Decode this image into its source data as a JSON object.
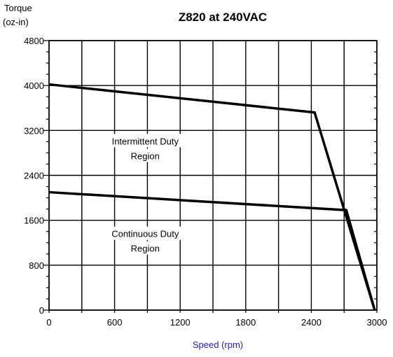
{
  "chart_data": {
    "type": "line",
    "title": "Z820 at 240VAC",
    "ylabel_lines": [
      "Torque",
      "(oz-in)"
    ],
    "xlabel": "Speed (rpm)",
    "xlim": [
      0,
      3000
    ],
    "ylim": [
      0,
      4800
    ],
    "x_ticks": [
      0,
      600,
      1200,
      1800,
      2400,
      3000
    ],
    "y_ticks": [
      0,
      800,
      1600,
      2400,
      3200,
      4000,
      4800
    ],
    "x_tick_labels": [
      "0",
      "600",
      "1200",
      "1800",
      "2400",
      "3000"
    ],
    "y_tick_labels": [
      "0",
      "800",
      "1600",
      "2400",
      "3200",
      "4000",
      "4800"
    ],
    "x_gridlines": [
      0,
      300,
      600,
      900,
      1200,
      1500,
      1800,
      2100,
      2400,
      2700,
      3000
    ],
    "grid": true,
    "xlabel_color": "#1a1acc",
    "series": [
      {
        "x": [
          0,
          2430,
          2980
        ],
        "y": [
          4020,
          3520,
          0
        ]
      },
      {
        "x": [
          0,
          2720,
          2980
        ],
        "y": [
          2100,
          1780,
          0
        ]
      }
    ],
    "annotations": [
      {
        "lines": [
          "Intermittent Duty",
          "Region"
        ],
        "x": 880,
        "y": 2950
      },
      {
        "lines": [
          "Continuous Duty",
          "Region"
        ],
        "x": 880,
        "y": 1300
      }
    ]
  }
}
